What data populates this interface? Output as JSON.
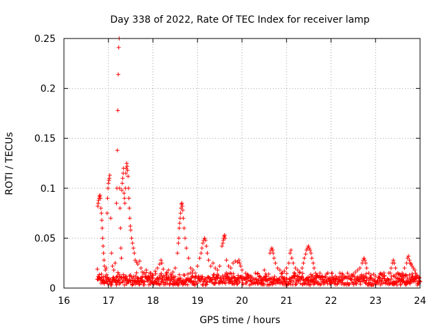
{
  "chart_data": {
    "type": "scatter",
    "title": "Day 338 of 2022, Rate Of TEC Index for receiver lamp",
    "xlabel": "GPS time / hours",
    "ylabel": "ROTI / TECUs",
    "xlim": [
      16,
      24
    ],
    "ylim": [
      0,
      0.25
    ],
    "xticks": [
      16,
      17,
      18,
      19,
      20,
      21,
      22,
      23,
      24
    ],
    "xtick_labels": [
      "16",
      "17",
      "18",
      "19",
      "20",
      "21",
      "22",
      "23",
      "24"
    ],
    "yticks": [
      0,
      0.05,
      0.1,
      0.15,
      0.2,
      0.25
    ],
    "ytick_labels": [
      "0",
      "0.05",
      "0.1",
      "0.15",
      "0.2",
      "0.25"
    ],
    "grid": true,
    "marker": "+",
    "series": [
      {
        "name": "ROTI",
        "color": "#ff0000",
        "points": [
          [
            16.75,
            0.019
          ],
          [
            16.76,
            0.082
          ],
          [
            16.77,
            0.085
          ],
          [
            16.78,
            0.088
          ],
          [
            16.79,
            0.09
          ],
          [
            16.8,
            0.092
          ],
          [
            16.81,
            0.093
          ],
          [
            16.82,
            0.09
          ],
          [
            16.83,
            0.08
          ],
          [
            16.84,
            0.075
          ],
          [
            16.85,
            0.068
          ],
          [
            16.86,
            0.06
          ],
          [
            16.87,
            0.05
          ],
          [
            16.88,
            0.042
          ],
          [
            16.89,
            0.035
          ],
          [
            16.9,
            0.028
          ],
          [
            16.91,
            0.022
          ],
          [
            16.93,
            0.018
          ],
          [
            16.95,
            0.02
          ],
          [
            16.97,
            0.075
          ],
          [
            16.98,
            0.09
          ],
          [
            16.99,
            0.1
          ],
          [
            17.0,
            0.105
          ],
          [
            17.01,
            0.108
          ],
          [
            17.02,
            0.11
          ],
          [
            17.03,
            0.113
          ],
          [
            17.05,
            0.07
          ],
          [
            17.07,
            0.035
          ],
          [
            17.09,
            0.022
          ],
          [
            17.12,
            0.018
          ],
          [
            17.15,
            0.025
          ],
          [
            17.18,
            0.085
          ],
          [
            17.19,
            0.1
          ],
          [
            17.2,
            0.138
          ],
          [
            17.21,
            0.178
          ],
          [
            17.22,
            0.214
          ],
          [
            17.23,
            0.241
          ],
          [
            17.24,
            0.25
          ],
          [
            17.25,
            0.1
          ],
          [
            17.26,
            0.08
          ],
          [
            17.27,
            0.06
          ],
          [
            17.28,
            0.04
          ],
          [
            17.29,
            0.03
          ],
          [
            17.3,
            0.098
          ],
          [
            17.31,
            0.105
          ],
          [
            17.32,
            0.11
          ],
          [
            17.33,
            0.115
          ],
          [
            17.34,
            0.12
          ],
          [
            17.35,
            0.095
          ],
          [
            17.36,
            0.09
          ],
          [
            17.37,
            0.085
          ],
          [
            17.38,
            0.1
          ],
          [
            17.39,
            0.115
          ],
          [
            17.4,
            0.12
          ],
          [
            17.41,
            0.125
          ],
          [
            17.42,
            0.122
          ],
          [
            17.43,
            0.118
          ],
          [
            17.44,
            0.112
          ],
          [
            17.45,
            0.1
          ],
          [
            17.46,
            0.09
          ],
          [
            17.47,
            0.08
          ],
          [
            17.48,
            0.07
          ],
          [
            17.49,
            0.062
          ],
          [
            17.5,
            0.058
          ],
          [
            17.52,
            0.05
          ],
          [
            17.54,
            0.045
          ],
          [
            17.56,
            0.04
          ],
          [
            17.58,
            0.035
          ],
          [
            17.6,
            0.028
          ],
          [
            17.63,
            0.026
          ],
          [
            17.66,
            0.024
          ],
          [
            17.7,
            0.027
          ],
          [
            17.73,
            0.02
          ],
          [
            17.76,
            0.016
          ],
          [
            17.8,
            0.014
          ],
          [
            17.85,
            0.018
          ],
          [
            17.9,
            0.012
          ],
          [
            17.95,
            0.015
          ],
          [
            18.0,
            0.013
          ],
          [
            18.05,
            0.017
          ],
          [
            18.1,
            0.02
          ],
          [
            18.15,
            0.024
          ],
          [
            18.18,
            0.028
          ],
          [
            18.2,
            0.025
          ],
          [
            18.23,
            0.019
          ],
          [
            18.3,
            0.015
          ],
          [
            18.35,
            0.018
          ],
          [
            18.4,
            0.014
          ],
          [
            18.45,
            0.016
          ],
          [
            18.5,
            0.02
          ],
          [
            18.55,
            0.035
          ],
          [
            18.57,
            0.045
          ],
          [
            18.58,
            0.05
          ],
          [
            18.59,
            0.06
          ],
          [
            18.6,
            0.065
          ],
          [
            18.61,
            0.07
          ],
          [
            18.62,
            0.075
          ],
          [
            18.63,
            0.08
          ],
          [
            18.64,
            0.084
          ],
          [
            18.65,
            0.085
          ],
          [
            18.66,
            0.082
          ],
          [
            18.67,
            0.078
          ],
          [
            18.68,
            0.07
          ],
          [
            18.7,
            0.06
          ],
          [
            18.72,
            0.05
          ],
          [
            18.75,
            0.04
          ],
          [
            18.8,
            0.03
          ],
          [
            18.85,
            0.02
          ],
          [
            18.9,
            0.018
          ],
          [
            18.95,
            0.015
          ],
          [
            19.0,
            0.022
          ],
          [
            19.05,
            0.03
          ],
          [
            19.08,
            0.035
          ],
          [
            19.1,
            0.04
          ],
          [
            19.12,
            0.045
          ],
          [
            19.14,
            0.048
          ],
          [
            19.16,
            0.05
          ],
          [
            19.18,
            0.048
          ],
          [
            19.2,
            0.042
          ],
          [
            19.22,
            0.035
          ],
          [
            19.25,
            0.028
          ],
          [
            19.3,
            0.022
          ],
          [
            19.35,
            0.025
          ],
          [
            19.4,
            0.02
          ],
          [
            19.45,
            0.018
          ],
          [
            19.5,
            0.022
          ],
          [
            19.55,
            0.042
          ],
          [
            19.57,
            0.045
          ],
          [
            19.58,
            0.048
          ],
          [
            19.59,
            0.05
          ],
          [
            19.6,
            0.052
          ],
          [
            19.61,
            0.053
          ],
          [
            19.62,
            0.05
          ],
          [
            19.65,
            0.028
          ],
          [
            19.7,
            0.022
          ],
          [
            19.75,
            0.02
          ],
          [
            19.8,
            0.025
          ],
          [
            19.85,
            0.027
          ],
          [
            19.9,
            0.026
          ],
          [
            19.93,
            0.028
          ],
          [
            19.95,
            0.025
          ],
          [
            19.97,
            0.022
          ],
          [
            20.0,
            0.018
          ],
          [
            20.1,
            0.01
          ],
          [
            20.2,
            0.012
          ],
          [
            20.3,
            0.015
          ],
          [
            20.4,
            0.012
          ],
          [
            20.5,
            0.018
          ],
          [
            20.55,
            0.012
          ],
          [
            20.6,
            0.014
          ],
          [
            20.63,
            0.035
          ],
          [
            20.65,
            0.038
          ],
          [
            20.67,
            0.04
          ],
          [
            20.69,
            0.038
          ],
          [
            20.7,
            0.035
          ],
          [
            20.72,
            0.03
          ],
          [
            20.75,
            0.025
          ],
          [
            20.8,
            0.02
          ],
          [
            20.85,
            0.018
          ],
          [
            20.9,
            0.015
          ],
          [
            20.95,
            0.017
          ],
          [
            21.0,
            0.02
          ],
          [
            21.05,
            0.025
          ],
          [
            21.08,
            0.035
          ],
          [
            21.1,
            0.038
          ],
          [
            21.12,
            0.03
          ],
          [
            21.15,
            0.025
          ],
          [
            21.2,
            0.02
          ],
          [
            21.25,
            0.018
          ],
          [
            21.3,
            0.016
          ],
          [
            21.35,
            0.02
          ],
          [
            21.38,
            0.025
          ],
          [
            21.4,
            0.03
          ],
          [
            21.43,
            0.034
          ],
          [
            21.45,
            0.038
          ],
          [
            21.47,
            0.04
          ],
          [
            21.49,
            0.042
          ],
          [
            21.51,
            0.04
          ],
          [
            21.53,
            0.038
          ],
          [
            21.55,
            0.035
          ],
          [
            21.57,
            0.03
          ],
          [
            21.6,
            0.025
          ],
          [
            21.62,
            0.02
          ],
          [
            21.65,
            0.015
          ],
          [
            21.7,
            0.012
          ],
          [
            21.75,
            0.015
          ],
          [
            21.8,
            0.012
          ],
          [
            21.9,
            0.014
          ],
          [
            22.0,
            0.01
          ],
          [
            22.1,
            0.012
          ],
          [
            22.2,
            0.015
          ],
          [
            22.3,
            0.01
          ],
          [
            22.4,
            0.012
          ],
          [
            22.5,
            0.014
          ],
          [
            22.55,
            0.016
          ],
          [
            22.6,
            0.018
          ],
          [
            22.65,
            0.02
          ],
          [
            22.7,
            0.025
          ],
          [
            22.72,
            0.028
          ],
          [
            22.74,
            0.03
          ],
          [
            22.76,
            0.028
          ],
          [
            22.78,
            0.025
          ],
          [
            22.8,
            0.02
          ],
          [
            22.85,
            0.015
          ],
          [
            22.9,
            0.013
          ],
          [
            23.0,
            0.012
          ],
          [
            23.1,
            0.014
          ],
          [
            23.2,
            0.012
          ],
          [
            23.3,
            0.015
          ],
          [
            23.35,
            0.02
          ],
          [
            23.38,
            0.025
          ],
          [
            23.4,
            0.028
          ],
          [
            23.42,
            0.025
          ],
          [
            23.45,
            0.02
          ],
          [
            23.5,
            0.015
          ],
          [
            23.55,
            0.013
          ],
          [
            23.6,
            0.015
          ],
          [
            23.65,
            0.02
          ],
          [
            23.7,
            0.025
          ],
          [
            23.72,
            0.03
          ],
          [
            23.74,
            0.032
          ],
          [
            23.76,
            0.028
          ],
          [
            23.78,
            0.025
          ],
          [
            23.8,
            0.024
          ],
          [
            23.82,
            0.022
          ],
          [
            23.85,
            0.02
          ],
          [
            23.88,
            0.018
          ],
          [
            23.9,
            0.015
          ],
          [
            23.95,
            0.012
          ],
          [
            23.98,
            0.01
          ]
        ],
        "baseline_band": [
          0.003,
          0.012
        ],
        "baseline_range": [
          16.75,
          24.0
        ]
      }
    ]
  }
}
